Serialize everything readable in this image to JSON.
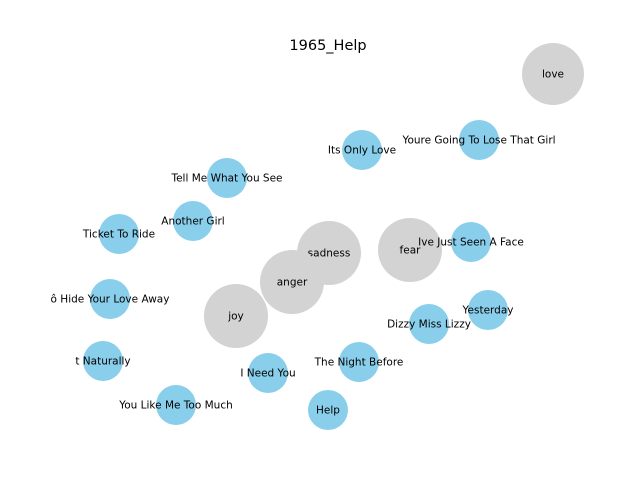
{
  "title": "1965_Help",
  "colors": {
    "song_node": "#89CEEB",
    "emotion_node": "#D3D3D3",
    "background": "#FFFFFF"
  },
  "emotions": [
    {
      "id": "love",
      "label": "love"
    },
    {
      "id": "sadness",
      "label": "sadness"
    },
    {
      "id": "fear",
      "label": "fear"
    },
    {
      "id": "anger",
      "label": "anger"
    },
    {
      "id": "joy",
      "label": "joy"
    }
  ],
  "songs": [
    {
      "id": "youre-going-to-lose-that-girl",
      "label": "Youre Going To Lose That Girl"
    },
    {
      "id": "its-only-love",
      "label": "Its Only Love"
    },
    {
      "id": "tell-me-what-you-see",
      "label": "Tell Me What You See"
    },
    {
      "id": "another-girl",
      "label": "Another Girl"
    },
    {
      "id": "ticket-to-ride",
      "label": "Ticket To Ride"
    },
    {
      "id": "ive-just-seen-a-face",
      "label": "Ive Just Seen A Face"
    },
    {
      "id": "youve-got-to-hide-your-love-away",
      "label": "ô Hide Your Love Away"
    },
    {
      "id": "yesterday",
      "label": "Yesterday"
    },
    {
      "id": "dizzy-miss-lizzy",
      "label": "Dizzy Miss Lizzy"
    },
    {
      "id": "act-naturally",
      "label": "t Naturally"
    },
    {
      "id": "the-night-before",
      "label": "The Night Before"
    },
    {
      "id": "i-need-you",
      "label": "I Need You"
    },
    {
      "id": "you-like-me-too-much",
      "label": "You Like Me Too Much"
    },
    {
      "id": "help",
      "label": "Help"
    }
  ]
}
